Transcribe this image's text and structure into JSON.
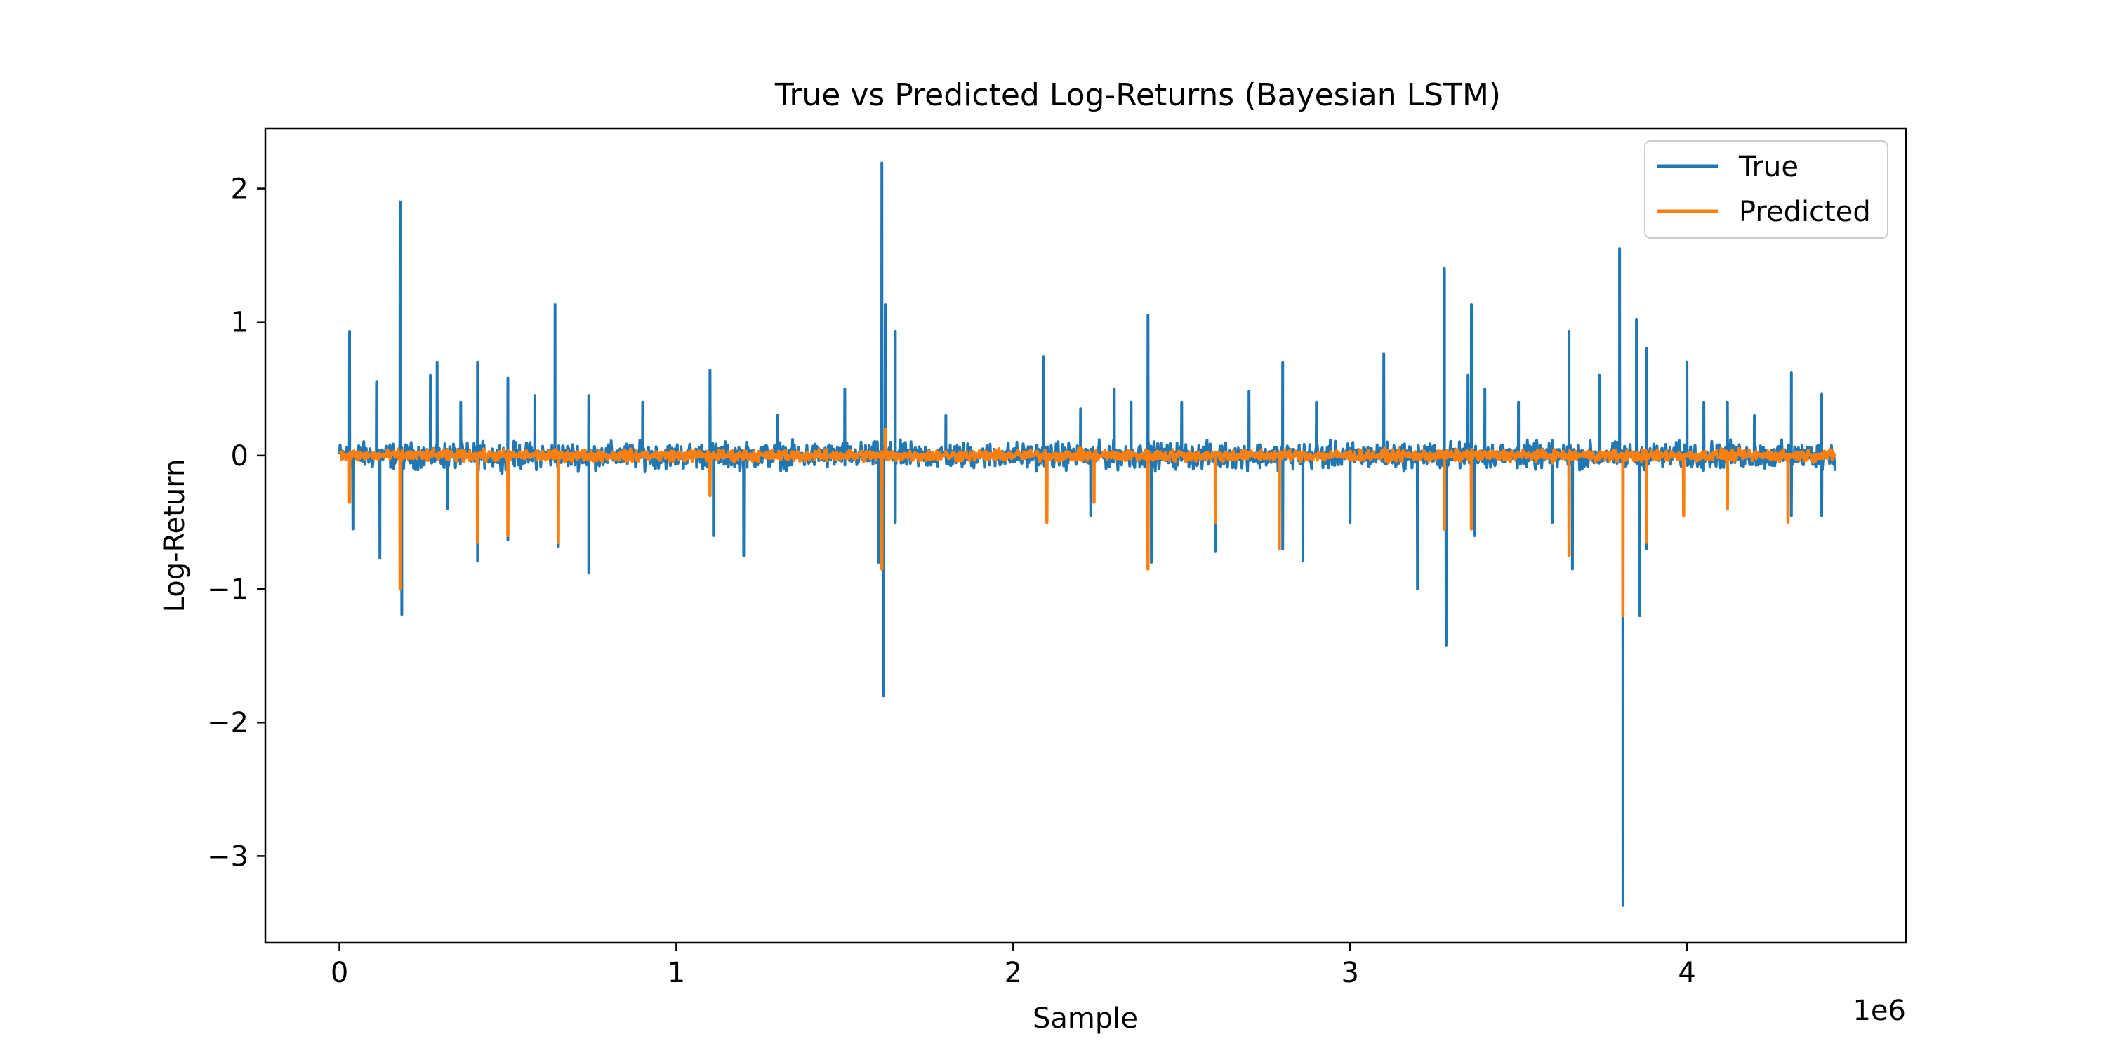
{
  "chart_data": {
    "type": "line",
    "title": "True vs Predicted Log-Returns (Bayesian LSTM)",
    "xlabel": "Sample",
    "ylabel": "Log-Return",
    "x_offset_label": "1e6",
    "xlim": [
      -0.22,
      4.65
    ],
    "ylim": [
      -3.65,
      2.45
    ],
    "x_ticks": [
      0,
      1,
      2,
      3,
      4
    ],
    "x_tick_labels": [
      "0",
      "1",
      "2",
      "3",
      "4"
    ],
    "y_ticks": [
      2,
      1,
      0,
      -1,
      -2,
      -3
    ],
    "y_tick_labels": [
      "2",
      "1",
      "0",
      "−1",
      "−2",
      "−3"
    ],
    "grid": false,
    "legend": "upper-right",
    "series": [
      {
        "name": "True",
        "color": "#1f77b4",
        "x_range": [
          0,
          4.44
        ],
        "noise_amplitude": 0.14,
        "spikes": [
          {
            "x": 0.03,
            "y": 0.93
          },
          {
            "x": 0.04,
            "y": -0.55
          },
          {
            "x": 0.11,
            "y": 0.55
          },
          {
            "x": 0.12,
            "y": -0.77
          },
          {
            "x": 0.18,
            "y": 1.9
          },
          {
            "x": 0.185,
            "y": -1.19
          },
          {
            "x": 0.27,
            "y": 0.6
          },
          {
            "x": 0.29,
            "y": 0.7
          },
          {
            "x": 0.32,
            "y": -0.4
          },
          {
            "x": 0.36,
            "y": 0.4
          },
          {
            "x": 0.41,
            "y": 0.7
          },
          {
            "x": 0.41,
            "y": -0.79
          },
          {
            "x": 0.5,
            "y": 0.58
          },
          {
            "x": 0.5,
            "y": -0.63
          },
          {
            "x": 0.58,
            "y": 0.45
          },
          {
            "x": 0.64,
            "y": 1.13
          },
          {
            "x": 0.65,
            "y": -0.68
          },
          {
            "x": 0.74,
            "y": 0.45
          },
          {
            "x": 0.74,
            "y": -0.88
          },
          {
            "x": 0.9,
            "y": 0.4
          },
          {
            "x": 1.1,
            "y": 0.64
          },
          {
            "x": 1.11,
            "y": -0.6
          },
          {
            "x": 1.2,
            "y": -0.75
          },
          {
            "x": 1.3,
            "y": 0.3
          },
          {
            "x": 1.5,
            "y": 0.5
          },
          {
            "x": 1.6,
            "y": -0.8
          },
          {
            "x": 1.61,
            "y": 2.19
          },
          {
            "x": 1.615,
            "y": -1.8
          },
          {
            "x": 1.62,
            "y": 1.13
          },
          {
            "x": 1.65,
            "y": 0.93
          },
          {
            "x": 1.65,
            "y": -0.5
          },
          {
            "x": 1.8,
            "y": 0.3
          },
          {
            "x": 2.09,
            "y": 0.74
          },
          {
            "x": 2.1,
            "y": -0.5
          },
          {
            "x": 2.2,
            "y": 0.35
          },
          {
            "x": 2.23,
            "y": -0.45
          },
          {
            "x": 2.3,
            "y": 0.5
          },
          {
            "x": 2.35,
            "y": 0.4
          },
          {
            "x": 2.4,
            "y": 1.05
          },
          {
            "x": 2.41,
            "y": -0.8
          },
          {
            "x": 2.5,
            "y": 0.4
          },
          {
            "x": 2.6,
            "y": -0.72
          },
          {
            "x": 2.7,
            "y": 0.48
          },
          {
            "x": 2.8,
            "y": 0.7
          },
          {
            "x": 2.8,
            "y": -0.7
          },
          {
            "x": 2.86,
            "y": -0.79
          },
          {
            "x": 2.9,
            "y": 0.4
          },
          {
            "x": 3.0,
            "y": -0.5
          },
          {
            "x": 3.1,
            "y": 0.76
          },
          {
            "x": 3.2,
            "y": -1.0
          },
          {
            "x": 3.28,
            "y": 1.4
          },
          {
            "x": 3.285,
            "y": -1.42
          },
          {
            "x": 3.35,
            "y": 0.6
          },
          {
            "x": 3.36,
            "y": 1.13
          },
          {
            "x": 3.37,
            "y": -0.6
          },
          {
            "x": 3.4,
            "y": 0.5
          },
          {
            "x": 3.5,
            "y": 0.4
          },
          {
            "x": 3.6,
            "y": -0.5
          },
          {
            "x": 3.65,
            "y": 0.93
          },
          {
            "x": 3.66,
            "y": -0.85
          },
          {
            "x": 3.74,
            "y": 0.6
          },
          {
            "x": 3.8,
            "y": 1.55
          },
          {
            "x": 3.81,
            "y": -3.37
          },
          {
            "x": 3.85,
            "y": 1.02
          },
          {
            "x": 3.86,
            "y": -1.2
          },
          {
            "x": 3.88,
            "y": 0.8
          },
          {
            "x": 3.88,
            "y": -0.7
          },
          {
            "x": 4.0,
            "y": 0.7
          },
          {
            "x": 4.05,
            "y": 0.4
          },
          {
            "x": 4.12,
            "y": 0.4
          },
          {
            "x": 4.2,
            "y": 0.3
          },
          {
            "x": 4.31,
            "y": 0.62
          },
          {
            "x": 4.31,
            "y": -0.45
          },
          {
            "x": 4.4,
            "y": 0.46
          },
          {
            "x": 4.4,
            "y": -0.45
          }
        ]
      },
      {
        "name": "Predicted",
        "color": "#ff7f0e",
        "x_range": [
          0,
          4.44
        ],
        "noise_amplitude": 0.06,
        "spikes": [
          {
            "x": 0.03,
            "y": -0.35
          },
          {
            "x": 0.18,
            "y": -1.0
          },
          {
            "x": 0.41,
            "y": -0.65
          },
          {
            "x": 0.5,
            "y": -0.6
          },
          {
            "x": 0.65,
            "y": -0.65
          },
          {
            "x": 1.1,
            "y": -0.3
          },
          {
            "x": 1.61,
            "y": -0.85
          },
          {
            "x": 1.62,
            "y": 0.2
          },
          {
            "x": 2.1,
            "y": -0.5
          },
          {
            "x": 2.24,
            "y": -0.35
          },
          {
            "x": 2.4,
            "y": -0.85
          },
          {
            "x": 2.6,
            "y": -0.5
          },
          {
            "x": 2.79,
            "y": -0.7
          },
          {
            "x": 3.28,
            "y": -0.55
          },
          {
            "x": 3.36,
            "y": -0.55
          },
          {
            "x": 3.65,
            "y": -0.75
          },
          {
            "x": 3.81,
            "y": -1.2
          },
          {
            "x": 3.88,
            "y": -0.65
          },
          {
            "x": 3.99,
            "y": -0.45
          },
          {
            "x": 4.12,
            "y": -0.4
          },
          {
            "x": 4.3,
            "y": -0.5
          }
        ]
      }
    ]
  }
}
